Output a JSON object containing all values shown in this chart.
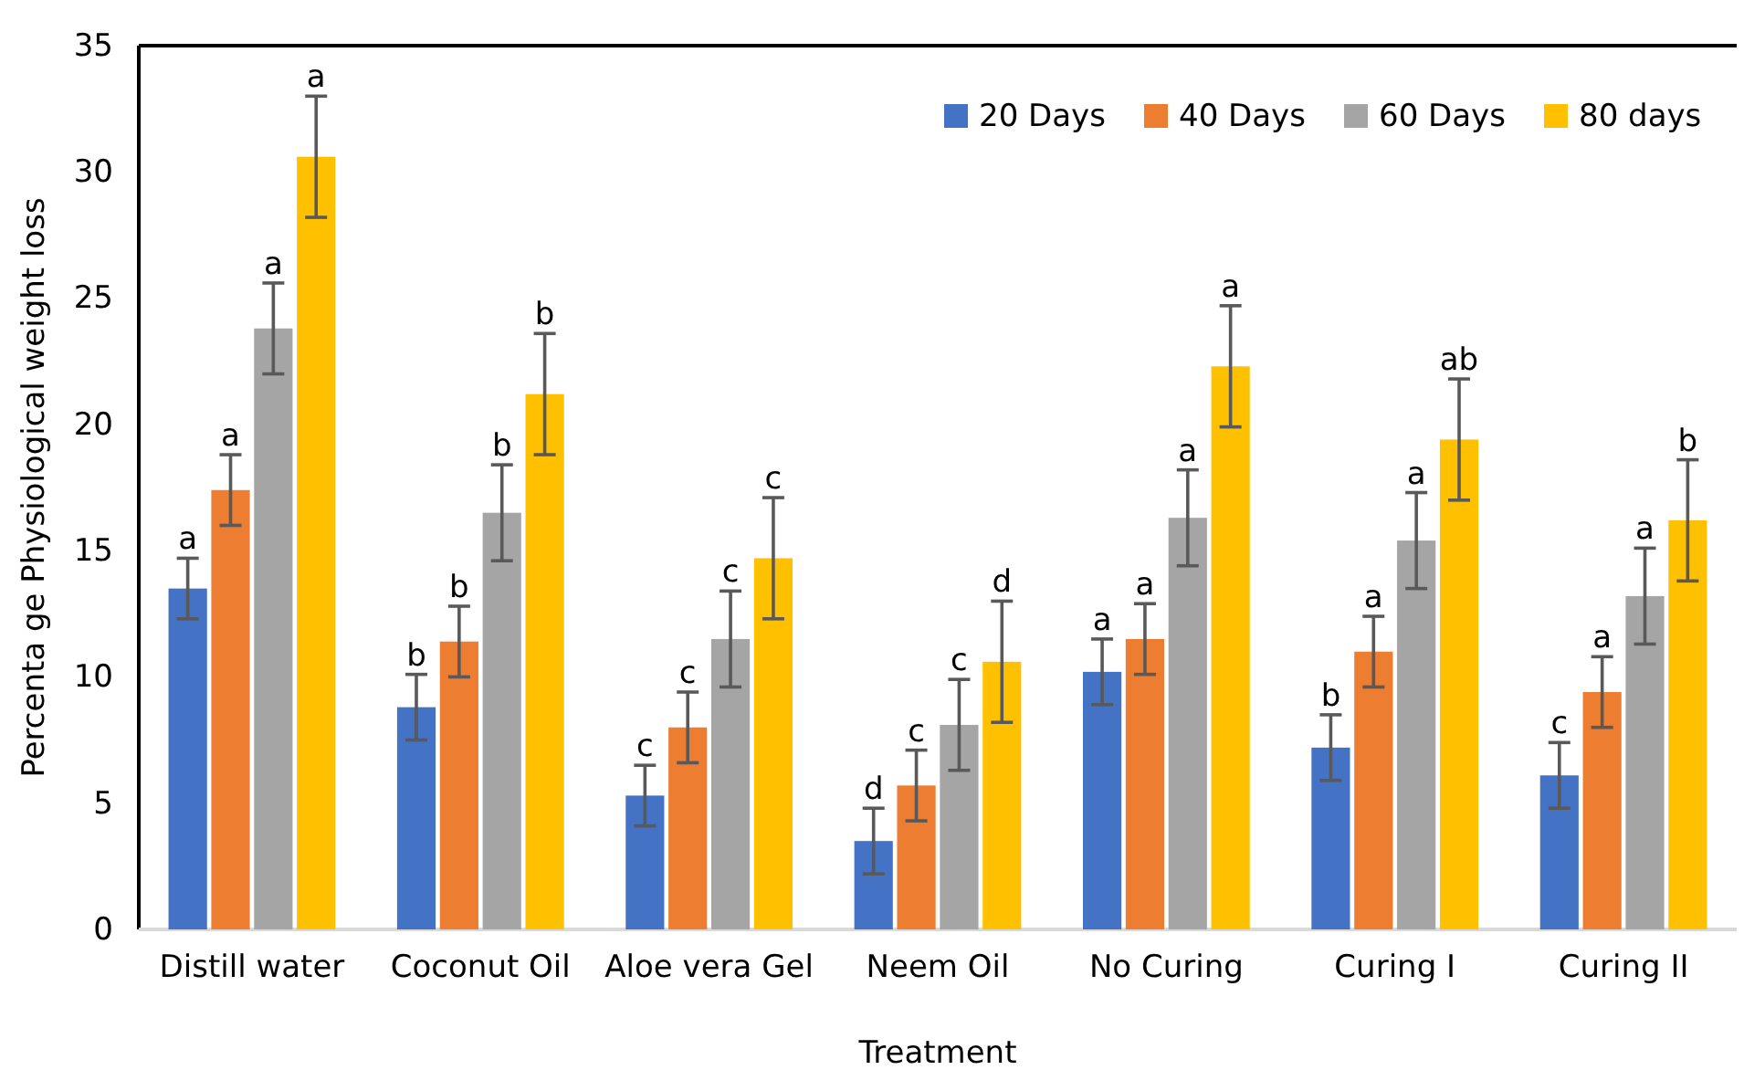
{
  "chart_data": {
    "type": "bar",
    "xlabel": "Treatment",
    "ylabel": "Percenta ge Physiological weight loss",
    "categories": [
      "Distill water",
      "Coconut Oil",
      "Aloe vera Gel",
      "Neem Oil",
      "No Curing",
      "Curing I",
      "Curing II"
    ],
    "series": [
      {
        "name": "20 Days",
        "color": "#4472c4",
        "values": [
          13.5,
          8.8,
          5.3,
          3.5,
          10.2,
          7.2,
          6.1
        ],
        "errors": [
          1.2,
          1.3,
          1.2,
          1.3,
          1.3,
          1.3,
          1.3
        ],
        "value_labels": [
          "a",
          "b",
          "c",
          "d",
          "a",
          "b",
          "c"
        ]
      },
      {
        "name": "40 Days",
        "color": "#ed7d31",
        "values": [
          17.4,
          11.4,
          8.0,
          5.7,
          11.5,
          11.0,
          9.4
        ],
        "errors": [
          1.4,
          1.4,
          1.4,
          1.4,
          1.4,
          1.4,
          1.4
        ],
        "value_labels": [
          "a",
          "b",
          "c",
          "c",
          "a",
          "a",
          "a"
        ]
      },
      {
        "name": "60 Days",
        "color": "#a5a5a5",
        "values": [
          23.8,
          16.5,
          11.5,
          8.1,
          16.3,
          15.4,
          13.2
        ],
        "errors": [
          1.8,
          1.9,
          1.9,
          1.8,
          1.9,
          1.9,
          1.9
        ],
        "value_labels": [
          "a",
          "b",
          "c",
          "c",
          "a",
          "a",
          "a"
        ]
      },
      {
        "name": "80 days",
        "color": "#ffc000",
        "values": [
          30.6,
          21.2,
          14.7,
          10.6,
          22.3,
          19.4,
          16.2
        ],
        "errors": [
          2.4,
          2.4,
          2.4,
          2.4,
          2.4,
          2.4,
          2.4
        ],
        "value_labels": [
          "a",
          "b",
          "c",
          "d",
          "a",
          "ab",
          "b"
        ]
      }
    ],
    "ylim": [
      0,
      35
    ],
    "yticks": [
      0,
      5,
      10,
      15,
      20,
      25,
      30,
      35
    ],
    "legend": "top right"
  }
}
